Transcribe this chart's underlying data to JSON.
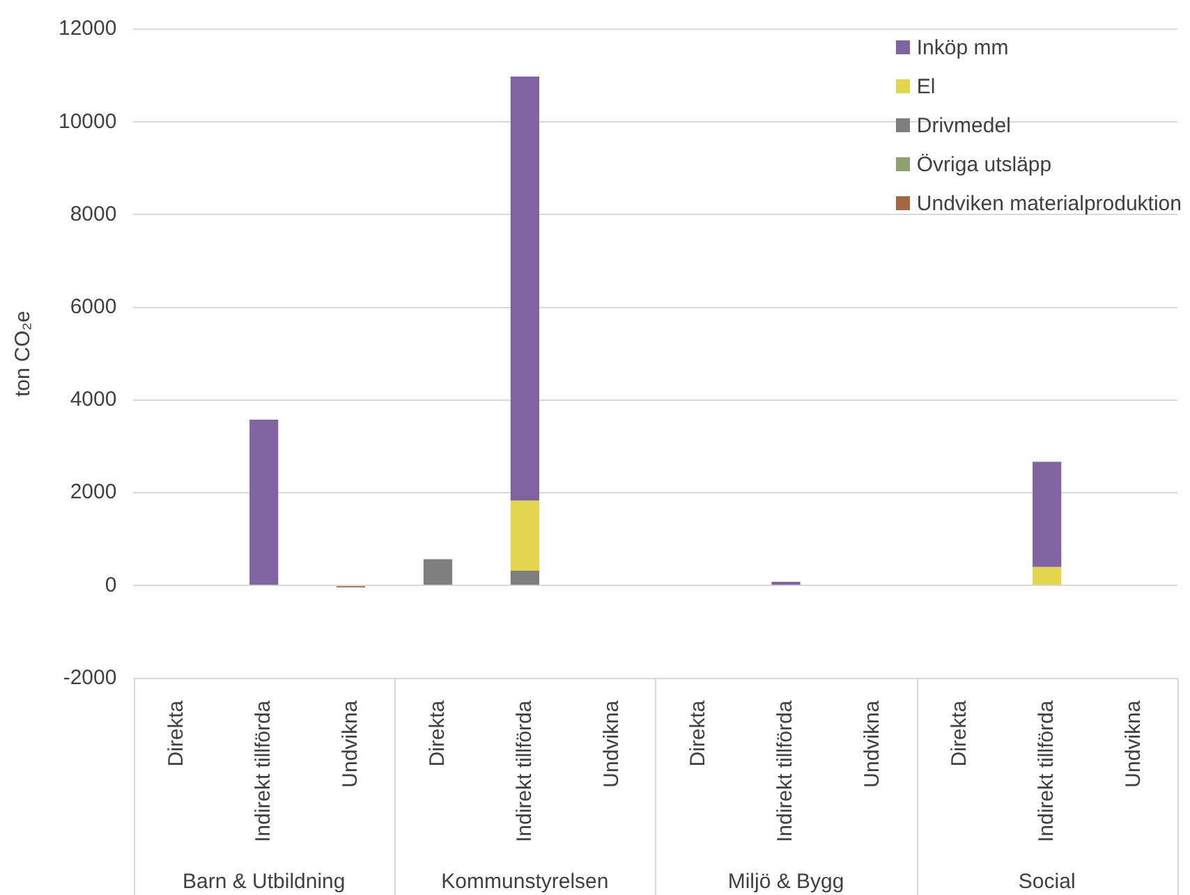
{
  "chart_data": {
    "type": "bar",
    "stacked": true,
    "ylabel": "ton CO₂e",
    "categories": [
      "Direkta",
      "Indirekt tillförda",
      "Undvikna",
      "Direkta",
      "Indirekt tillförda",
      "Undvikna",
      "Direkta",
      "Indirekt tillförda",
      "Undvikna",
      "Direkta",
      "Indirekt tillförda",
      "Undvikna"
    ],
    "series": [
      {
        "name": "Undviken materialproduktion",
        "color": "#a5673f",
        "values": [
          0,
          0,
          -40,
          0,
          0,
          null,
          0,
          0,
          null,
          0,
          0,
          null
        ]
      },
      {
        "name": "Övriga utsläpp",
        "color": "#8fa071",
        "values": [
          0,
          0,
          0,
          0,
          0,
          0,
          0,
          0,
          0,
          0,
          0,
          0
        ]
      },
      {
        "name": "Drivmedel",
        "color": "#7f7f7f",
        "values": [
          0,
          0,
          0,
          570,
          320,
          0,
          0,
          0,
          0,
          0,
          0,
          0
        ]
      },
      {
        "name": "El",
        "color": "#e3d64d",
        "values": [
          0,
          0,
          0,
          0,
          1510,
          0,
          0,
          0,
          0,
          0,
          400,
          0
        ]
      },
      {
        "name": "Inköp mm",
        "color": "#8064a2",
        "values": [
          0,
          3580,
          0,
          0,
          9150,
          0,
          0,
          80,
          0,
          0,
          2270,
          0
        ]
      }
    ],
    "ylim": [
      -2000,
      12000
    ],
    "yticks": [
      -2000,
      0,
      2000,
      4000,
      6000,
      8000,
      10000,
      12000
    ],
    "grid": "y",
    "legend": "top right",
    "annotations": [
      "Barn & Utbildning",
      "Kommunstyrelsen",
      "Miljö & Bygg",
      "Social"
    ]
  }
}
